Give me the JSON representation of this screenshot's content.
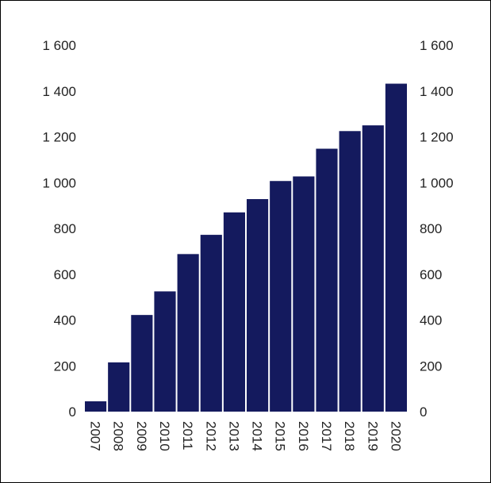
{
  "chart_data": {
    "type": "bar",
    "categories": [
      "2007",
      "2008",
      "2009",
      "2010",
      "2011",
      "2012",
      "2013",
      "2014",
      "2015",
      "2016",
      "2017",
      "2018",
      "2019",
      "2020"
    ],
    "values": [
      45,
      215,
      422,
      525,
      688,
      772,
      870,
      928,
      1007,
      1027,
      1148,
      1225,
      1250,
      1432
    ],
    "ylim": [
      0,
      1600
    ],
    "yticks": [
      0,
      200,
      400,
      600,
      800,
      1000,
      1200,
      1400,
      1600
    ],
    "ytick_labels": [
      "0",
      "200",
      "400",
      "600",
      "800",
      "1 000",
      "1 200",
      "1 400",
      "1 600"
    ],
    "grid": false,
    "legend": "none",
    "title": "",
    "xlabel": "",
    "ylabel": "",
    "colors": {
      "bar": "#141a5e",
      "text": "#222222",
      "frame": "#000000"
    }
  }
}
